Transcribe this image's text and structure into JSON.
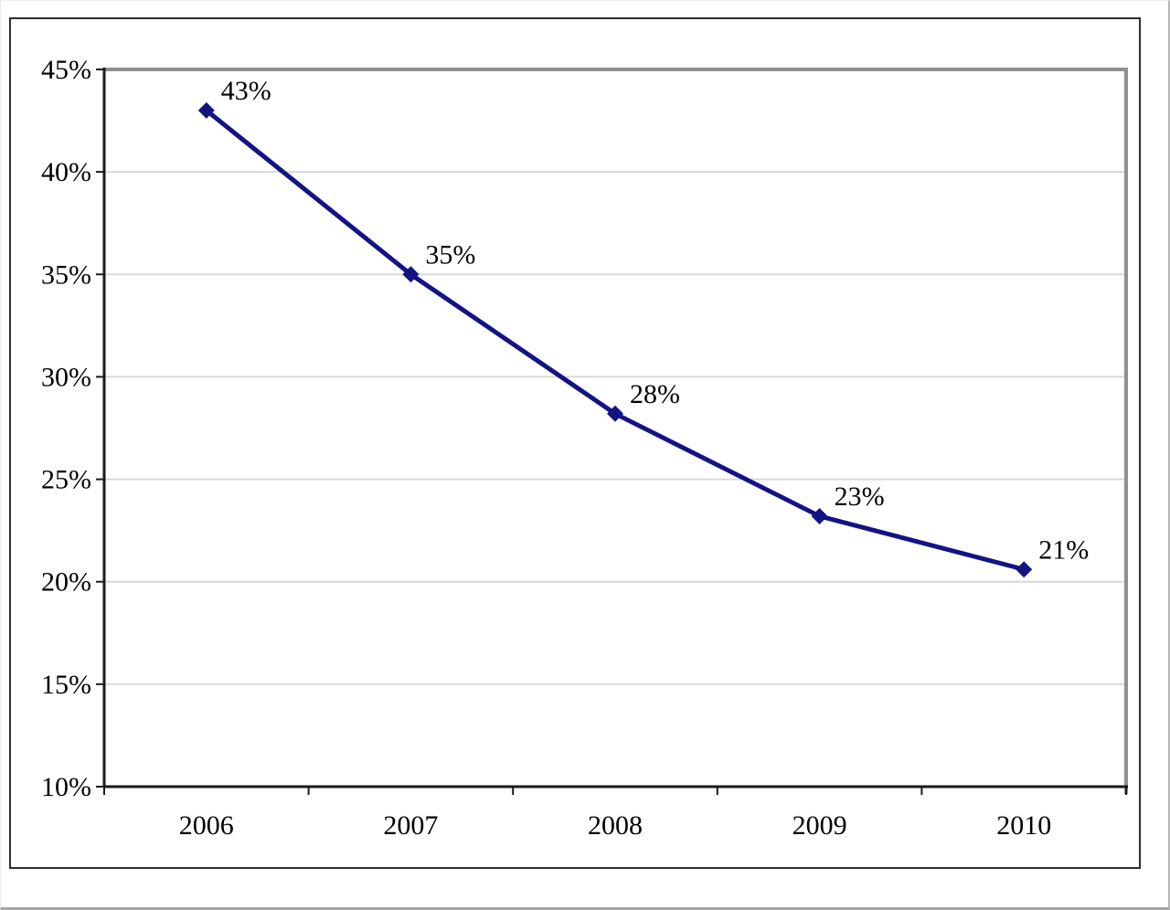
{
  "page": {
    "background": "#ffffff",
    "edge_color": "#a6a6a6"
  },
  "chart_data": {
    "type": "line",
    "title": "",
    "xlabel": "",
    "ylabel": "",
    "categories": [
      "2006",
      "2007",
      "2008",
      "2009",
      "2010"
    ],
    "series": [
      {
        "name": "percent-by-year",
        "values": [
          43,
          35,
          28,
          23,
          21
        ],
        "point_labels": [
          "43%",
          "35%",
          "28%",
          "23%",
          "21%"
        ],
        "plotted_values": [
          43,
          35,
          28.2,
          23.2,
          20.6
        ]
      }
    ],
    "ylim": [
      10,
      45
    ],
    "y_tick_step": 5,
    "y_tick_labels": [
      "45%",
      "40%",
      "35%",
      "30%",
      "25%",
      "20%",
      "15%",
      "10%"
    ],
    "grid": true,
    "legend": "none",
    "marker": "diamond",
    "colors": {
      "line": "#131383",
      "marker": "#131383",
      "data_label": "#000000",
      "tick_label": "#000000",
      "axis": "#1a1a1a",
      "gridline": "#d8d8d8",
      "plot_border": "#909090",
      "chart_border": "#2e2e2e"
    }
  }
}
